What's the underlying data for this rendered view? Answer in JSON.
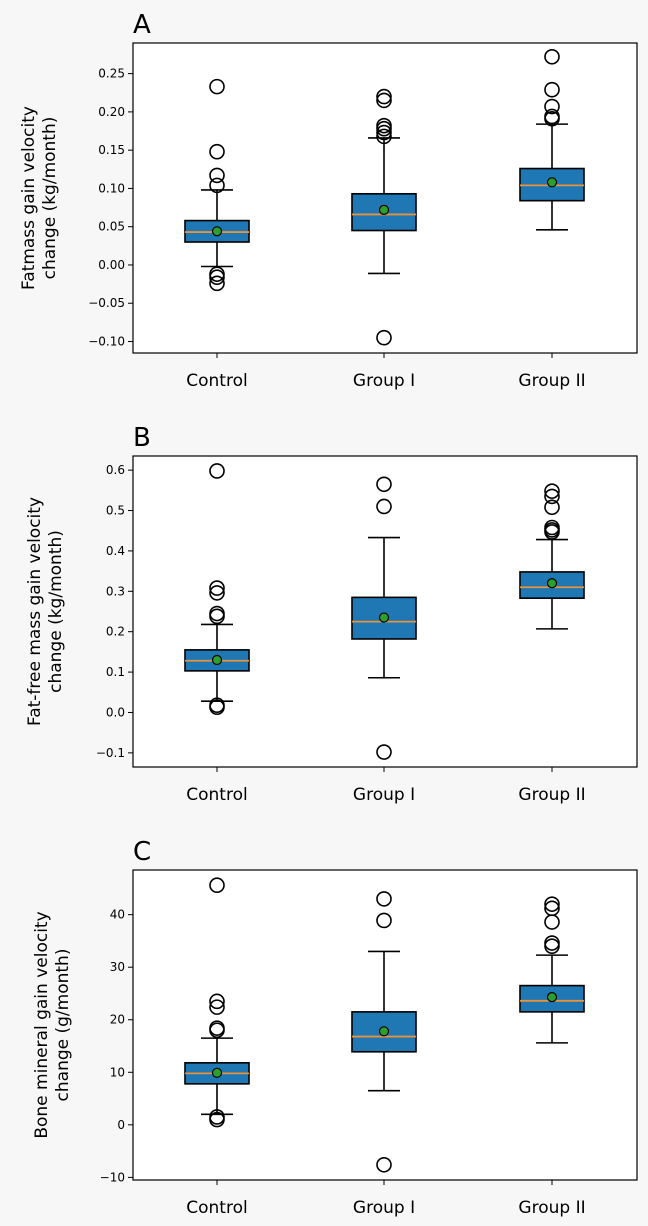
{
  "chart_data": [
    {
      "type": "box",
      "panel": "A",
      "ylabel": [
        "Fatmass gain velocity",
        "change (kg/month)"
      ],
      "ylim": [
        -0.115,
        0.29
      ],
      "yticks": [
        -0.1,
        -0.05,
        0.0,
        0.05,
        0.1,
        0.15,
        0.2,
        0.25
      ],
      "ytick_labels": [
        "−0.10",
        "−0.05",
        "0.00",
        "0.05",
        "0.10",
        "0.15",
        "0.20",
        "0.25"
      ],
      "categories": [
        "Control",
        "Group I",
        "Group II"
      ],
      "boxes": [
        {
          "whisker_low": -0.002,
          "q1": 0.03,
          "median": 0.043,
          "q3": 0.058,
          "whisker_high": 0.098,
          "mean": 0.044,
          "outliers": [
            0.233,
            0.148,
            0.117,
            0.104,
            -0.012,
            -0.016,
            -0.024
          ]
        },
        {
          "whisker_low": -0.011,
          "q1": 0.045,
          "median": 0.066,
          "q3": 0.093,
          "whisker_high": 0.166,
          "mean": 0.072,
          "outliers": [
            0.22,
            0.215,
            0.182,
            0.178,
            0.173,
            0.168,
            -0.095
          ]
        },
        {
          "whisker_low": 0.046,
          "q1": 0.084,
          "median": 0.104,
          "q3": 0.126,
          "whisker_high": 0.184,
          "mean": 0.108,
          "outliers": [
            0.272,
            0.229,
            0.207,
            0.194,
            0.191
          ]
        }
      ]
    },
    {
      "type": "box",
      "panel": "B",
      "ylabel": [
        "Fat-free mass gain velocity",
        "change (kg/month)"
      ],
      "ylim": [
        -0.135,
        0.635
      ],
      "yticks": [
        -0.1,
        0.0,
        0.1,
        0.2,
        0.3,
        0.4,
        0.5,
        0.6
      ],
      "ytick_labels": [
        "−0.1",
        "0.0",
        "0.1",
        "0.2",
        "0.3",
        "0.4",
        "0.5",
        "0.6"
      ],
      "categories": [
        "Control",
        "Group I",
        "Group II"
      ],
      "boxes": [
        {
          "whisker_low": 0.028,
          "q1": 0.103,
          "median": 0.128,
          "q3": 0.155,
          "whisker_high": 0.218,
          "mean": 0.13,
          "outliers": [
            0.598,
            0.308,
            0.296,
            0.245,
            0.238,
            0.018,
            0.013
          ]
        },
        {
          "whisker_low": 0.086,
          "q1": 0.182,
          "median": 0.225,
          "q3": 0.285,
          "whisker_high": 0.433,
          "mean": 0.235,
          "outliers": [
            0.565,
            0.51,
            -0.098
          ]
        },
        {
          "whisker_low": 0.207,
          "q1": 0.283,
          "median": 0.31,
          "q3": 0.348,
          "whisker_high": 0.428,
          "mean": 0.32,
          "outliers": [
            0.548,
            0.535,
            0.508,
            0.458,
            0.452,
            0.447
          ]
        }
      ]
    },
    {
      "type": "box",
      "panel": "C",
      "ylabel": [
        "Bone mineral gain velocity",
        "change (g/month)"
      ],
      "ylim": [
        -10.5,
        48.5
      ],
      "yticks": [
        -10,
        0,
        10,
        20,
        30,
        40
      ],
      "ytick_labels": [
        "−10",
        "0",
        "10",
        "20",
        "30",
        "40"
      ],
      "categories": [
        "Control",
        "Group I",
        "Group II"
      ],
      "boxes": [
        {
          "whisker_low": 2.0,
          "q1": 7.8,
          "median": 9.8,
          "q3": 11.8,
          "whisker_high": 16.5,
          "mean": 9.9,
          "outliers": [
            45.6,
            23.5,
            22.4,
            18.4,
            18.0,
            1.5,
            1.0
          ]
        },
        {
          "whisker_low": 6.5,
          "q1": 13.9,
          "median": 16.8,
          "q3": 21.5,
          "whisker_high": 33.0,
          "mean": 17.8,
          "outliers": [
            43.0,
            38.9,
            -7.6
          ]
        },
        {
          "whisker_low": 15.6,
          "q1": 21.5,
          "median": 23.6,
          "q3": 26.5,
          "whisker_high": 32.3,
          "mean": 24.3,
          "outliers": [
            42.0,
            41.2,
            38.6,
            34.6,
            34.0
          ]
        }
      ]
    }
  ],
  "colors": {
    "box_fill": "#1f77b4",
    "median": "#e8923a",
    "mean_fill": "#2ca02c",
    "edge": "#000000"
  }
}
